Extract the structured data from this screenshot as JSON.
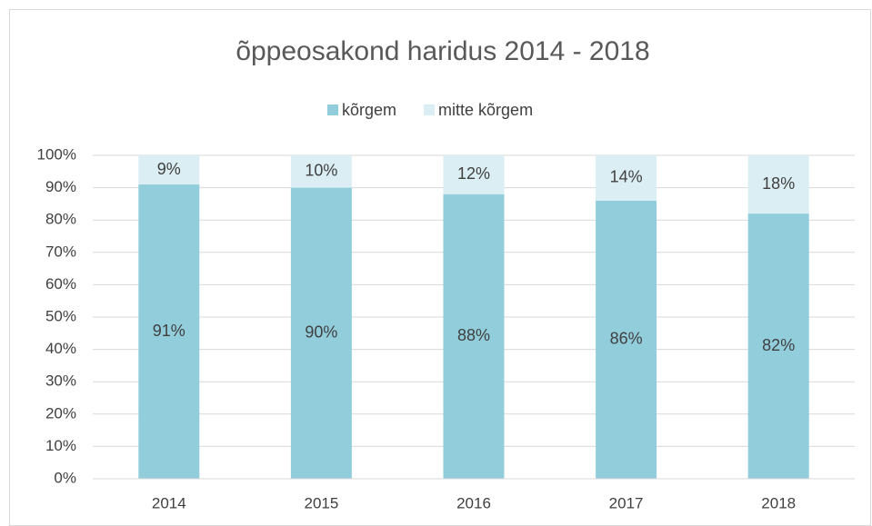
{
  "chart_data": {
    "type": "stacked_bar",
    "title": "õppeosakond haridus 2014 - 2018",
    "categories": [
      "2014",
      "2015",
      "2016",
      "2017",
      "2018"
    ],
    "series": [
      {
        "name": "kõrgem",
        "color": "#92cddc",
        "values": [
          91,
          90,
          88,
          86,
          82
        ],
        "value_labels": [
          "91%",
          "90%",
          "88%",
          "86%",
          "82%"
        ]
      },
      {
        "name": "mitte kõrgem",
        "color": "#daeef3",
        "values": [
          9,
          10,
          12,
          14,
          18
        ],
        "value_labels": [
          "9%",
          "10%",
          "12%",
          "14%",
          "18%"
        ]
      }
    ],
    "ylim": [
      0,
      100
    ],
    "yticks": [
      {
        "value": 0,
        "label": "0%"
      },
      {
        "value": 10,
        "label": "10%"
      },
      {
        "value": 20,
        "label": "20%"
      },
      {
        "value": 30,
        "label": "30%"
      },
      {
        "value": 40,
        "label": "40%"
      },
      {
        "value": 50,
        "label": "50%"
      },
      {
        "value": 60,
        "label": "60%"
      },
      {
        "value": 70,
        "label": "70%"
      },
      {
        "value": 80,
        "label": "80%"
      },
      {
        "value": 90,
        "label": "90%"
      },
      {
        "value": 100,
        "label": "100%"
      }
    ],
    "grid": true,
    "legend": "top"
  }
}
